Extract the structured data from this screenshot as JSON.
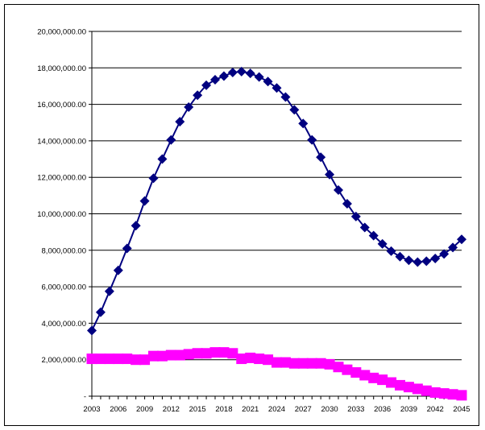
{
  "chart_data": {
    "type": "line",
    "title": "",
    "xlabel": "",
    "ylabel": "",
    "ylim": [
      0,
      20000000
    ],
    "y_ticks": [
      {
        "value": 0,
        "label": "-"
      },
      {
        "value": 2000000,
        "label": "2,000,000.00"
      },
      {
        "value": 4000000,
        "label": "4,000,000.00"
      },
      {
        "value": 6000000,
        "label": "6,000,000.00"
      },
      {
        "value": 8000000,
        "label": "8,000,000.00"
      },
      {
        "value": 10000000,
        "label": "10,000,000.00"
      },
      {
        "value": 12000000,
        "label": "12,000,000.00"
      },
      {
        "value": 14000000,
        "label": "14,000,000.00"
      },
      {
        "value": 16000000,
        "label": "16,000,000.00"
      },
      {
        "value": 18000000,
        "label": "18,000,000.00"
      },
      {
        "value": 20000000,
        "label": "20,000,000.00"
      }
    ],
    "x_tick_labels": [
      "2003",
      "2006",
      "2009",
      "2012",
      "2015",
      "2018",
      "2021",
      "2024",
      "2027",
      "2030",
      "2033",
      "2036",
      "2039",
      "2042",
      "2045"
    ],
    "categories": [
      2003,
      2004,
      2005,
      2006,
      2007,
      2008,
      2009,
      2010,
      2011,
      2012,
      2013,
      2014,
      2015,
      2016,
      2017,
      2018,
      2019,
      2020,
      2021,
      2022,
      2023,
      2024,
      2025,
      2026,
      2027,
      2028,
      2029,
      2030,
      2031,
      2032,
      2033,
      2034,
      2035,
      2036,
      2037,
      2038,
      2039,
      2040,
      2041,
      2042,
      2043,
      2044,
      2045
    ],
    "grid": "horizontal",
    "legend": "none",
    "series": [
      {
        "color": "#000080",
        "marker": "diamond",
        "line": true,
        "values": [
          3600000,
          4600000,
          5750000,
          6900000,
          8100000,
          9350000,
          10700000,
          11950000,
          13000000,
          14050000,
          15050000,
          15850000,
          16500000,
          17050000,
          17350000,
          17550000,
          17750000,
          17800000,
          17700000,
          17500000,
          17250000,
          16900000,
          16400000,
          15700000,
          14950000,
          14050000,
          13100000,
          12150000,
          11300000,
          10550000,
          9850000,
          9250000,
          8800000,
          8350000,
          7950000,
          7650000,
          7450000,
          7350000,
          7400000,
          7550000,
          7800000,
          8150000,
          8600000
        ]
      },
      {
        "color": "#FF00FF",
        "marker": "square",
        "line": false,
        "values": [
          2050000,
          2050000,
          2050000,
          2050000,
          2050000,
          2000000,
          2000000,
          2200000,
          2200000,
          2250000,
          2250000,
          2300000,
          2350000,
          2350000,
          2400000,
          2400000,
          2350000,
          2050000,
          2100000,
          2050000,
          2000000,
          1850000,
          1850000,
          1800000,
          1800000,
          1800000,
          1800000,
          1750000,
          1600000,
          1450000,
          1300000,
          1150000,
          1000000,
          900000,
          750000,
          600000,
          500000,
          400000,
          300000,
          200000,
          150000,
          100000,
          50000
        ]
      }
    ]
  }
}
